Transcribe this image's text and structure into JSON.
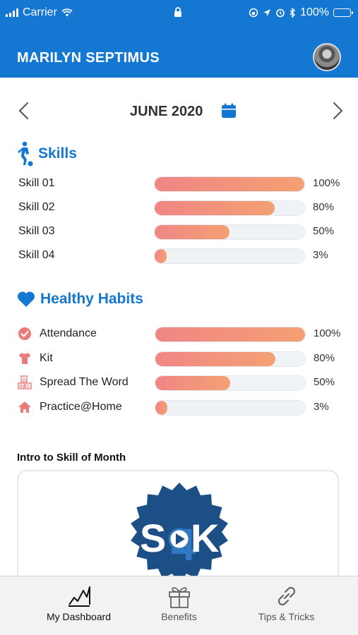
{
  "status_bar": {
    "carrier": "Carrier",
    "battery": "100%",
    "signal_icon": "signal-icon",
    "wifi_icon": "wifi-icon",
    "lock_icon": "lock-icon",
    "location_icon": "location-icon",
    "alarm_icon": "alarm-icon",
    "bluetooth_icon": "bluetooth-icon",
    "orientation_icon": "orientation-lock-icon"
  },
  "header": {
    "user_name": "MARILYN SEPTIMUS",
    "brand_color": "#1477d2"
  },
  "month_nav": {
    "title": "JUNE 2020"
  },
  "skills": {
    "title": "Skills",
    "items": [
      {
        "label": "Skill 01",
        "percent": 100,
        "percent_label": "100%"
      },
      {
        "label": "Skill 02",
        "percent": 80,
        "percent_label": "80%"
      },
      {
        "label": "Skill 03",
        "percent": 50,
        "percent_label": "50%"
      },
      {
        "label": "Skill 04",
        "percent": 3,
        "percent_label": "3%"
      }
    ]
  },
  "habits": {
    "title": "Healthy Habits",
    "items": [
      {
        "label": "Attendance",
        "icon": "check-circle-icon",
        "percent": 100,
        "percent_label": "100%"
      },
      {
        "label": "Kit",
        "icon": "shirt-icon",
        "percent": 80,
        "percent_label": "80%"
      },
      {
        "label": "Spread The Word",
        "icon": "abc-blocks-icon",
        "percent": 50,
        "percent_label": "50%"
      },
      {
        "label": "Practice@Home",
        "icon": "home-icon",
        "percent": 3,
        "percent_label": "3%"
      }
    ]
  },
  "intro": {
    "title": "Intro to Skill of Month",
    "logo_text_left": "S",
    "logo_text_right": "K",
    "logo_number": "4"
  },
  "tabs": [
    {
      "label": "My Dashboard",
      "icon": "dashboard-chart-icon",
      "active": true
    },
    {
      "label": "Benefits",
      "icon": "gift-icon",
      "active": false
    },
    {
      "label": "Tips & Tricks",
      "icon": "link-icon",
      "active": false
    }
  ]
}
